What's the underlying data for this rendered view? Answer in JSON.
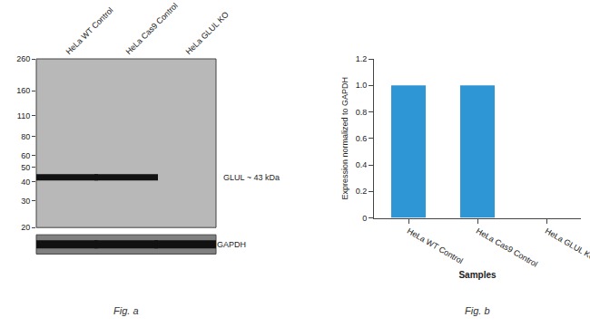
{
  "chart_data": [
    {
      "type": "blot",
      "caption": "Fig. a",
      "categories": [
        "HeLa WT Control",
        "HeLa Cas9 Control",
        "HeLa GLUL KO"
      ],
      "log": "y",
      "ylim": [
        20,
        260
      ],
      "yticks": [
        260,
        160,
        110,
        80,
        60,
        50,
        40,
        30,
        20
      ],
      "bands": [
        {
          "name": "GLUL ~ 43 kDa",
          "y": 43,
          "lanes": [
            "HeLa WT Control",
            "HeLa Cas9 Control"
          ]
        }
      ],
      "loading_control": {
        "name": "GAPDH",
        "lanes": [
          "HeLa WT Control",
          "HeLa Cas9 Control",
          "HeLa GLUL KO"
        ]
      },
      "color": "#111111"
    },
    {
      "type": "bar",
      "caption": "Fig. b",
      "categories": [
        "HeLa WT Control",
        "HeLa Cas9 Control",
        "HeLa GLUL KO"
      ],
      "values": [
        1.0,
        1.0,
        0.0
      ],
      "color": "#2e96d4",
      "xlabel": "Samples",
      "ylabel": "Expression normalized to GAPDH",
      "ylim": [
        0,
        1.2
      ],
      "yticks": [
        0,
        0.2,
        0.4,
        0.6,
        0.8,
        {
          "value": 1.0,
          "label": "1.0"
        },
        1.2
      ],
      "grid": false
    }
  ]
}
